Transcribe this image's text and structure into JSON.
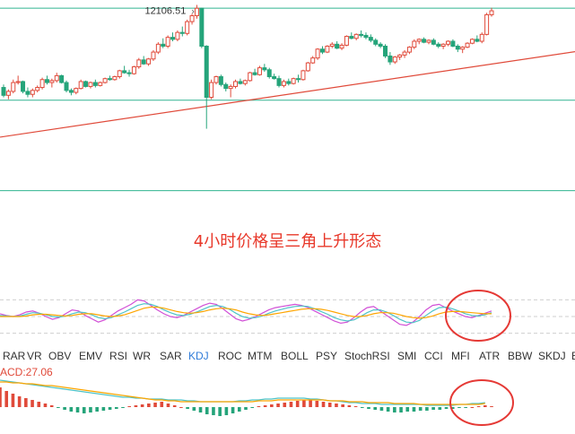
{
  "chart_data": [
    {
      "type": "candlestick",
      "high_label": "12106.51",
      "levels": {
        "top": 12106.51,
        "middle": 11170,
        "bottom": 10250
      },
      "trendline": [
        {
          "bar": 0,
          "value": 10800
        },
        {
          "bar": 130,
          "value": 11750
        }
      ],
      "ohlc": [
        [
          11300,
          11330,
          11200,
          11220
        ],
        [
          11220,
          11280,
          11180,
          11260
        ],
        [
          11260,
          11380,
          11240,
          11350
        ],
        [
          11350,
          11420,
          11330,
          11360
        ],
        [
          11360,
          11370,
          11240,
          11260
        ],
        [
          11260,
          11300,
          11200,
          11230
        ],
        [
          11230,
          11290,
          11200,
          11270
        ],
        [
          11270,
          11320,
          11250,
          11300
        ],
        [
          11300,
          11400,
          11280,
          11380
        ],
        [
          11380,
          11420,
          11330,
          11350
        ],
        [
          11350,
          11390,
          11300,
          11370
        ],
        [
          11370,
          11450,
          11350,
          11420
        ],
        [
          11420,
          11430,
          11340,
          11350
        ],
        [
          11350,
          11370,
          11250,
          11270
        ],
        [
          11270,
          11290,
          11220,
          11250
        ],
        [
          11250,
          11300,
          11230,
          11290
        ],
        [
          11290,
          11380,
          11280,
          11360
        ],
        [
          11360,
          11370,
          11300,
          11310
        ],
        [
          11310,
          11360,
          11290,
          11350
        ],
        [
          11350,
          11380,
          11300,
          11320
        ],
        [
          11320,
          11360,
          11310,
          11350
        ],
        [
          11350,
          11400,
          11340,
          11390
        ],
        [
          11390,
          11420,
          11370,
          11380
        ],
        [
          11380,
          11420,
          11370,
          11410
        ],
        [
          11410,
          11480,
          11390,
          11470
        ],
        [
          11470,
          11520,
          11440,
          11450
        ],
        [
          11450,
          11480,
          11410,
          11440
        ],
        [
          11440,
          11520,
          11430,
          11510
        ],
        [
          11510,
          11600,
          11490,
          11580
        ],
        [
          11580,
          11620,
          11530,
          11540
        ],
        [
          11540,
          11600,
          11520,
          11590
        ],
        [
          11590,
          11680,
          11570,
          11660
        ],
        [
          11660,
          11760,
          11640,
          11740
        ],
        [
          11740,
          11800,
          11700,
          11720
        ],
        [
          11720,
          11830,
          11700,
          11810
        ],
        [
          11810,
          11860,
          11770,
          11790
        ],
        [
          11790,
          11880,
          11770,
          11860
        ],
        [
          11860,
          11920,
          11820,
          11850
        ],
        [
          11850,
          11990,
          11830,
          11970
        ],
        [
          11970,
          12050,
          11940,
          12030
        ],
        [
          12030,
          12140,
          12000,
          12106
        ],
        [
          12106,
          12110,
          11700,
          11720
        ],
        [
          11720,
          11730,
          10880,
          11200
        ],
        [
          11200,
          11380,
          11180,
          11350
        ],
        [
          11350,
          11420,
          11330,
          11410
        ],
        [
          11410,
          11430,
          11310,
          11330
        ],
        [
          11330,
          11350,
          11260,
          11290
        ],
        [
          11290,
          11330,
          11200,
          11310
        ],
        [
          11310,
          11380,
          11290,
          11360
        ],
        [
          11360,
          11390,
          11330,
          11340
        ],
        [
          11340,
          11380,
          11320,
          11370
        ],
        [
          11370,
          11460,
          11360,
          11450
        ],
        [
          11450,
          11490,
          11420,
          11430
        ],
        [
          11430,
          11520,
          11420,
          11500
        ],
        [
          11500,
          11540,
          11460,
          11480
        ],
        [
          11480,
          11500,
          11390,
          11410
        ],
        [
          11410,
          11440,
          11380,
          11390
        ],
        [
          11390,
          11420,
          11300,
          11320
        ],
        [
          11320,
          11380,
          11300,
          11360
        ],
        [
          11360,
          11390,
          11320,
          11340
        ],
        [
          11340,
          11400,
          11330,
          11390
        ],
        [
          11390,
          11430,
          11350,
          11380
        ],
        [
          11380,
          11480,
          11370,
          11470
        ],
        [
          11470,
          11560,
          11460,
          11550
        ],
        [
          11550,
          11620,
          11540,
          11600
        ],
        [
          11600,
          11700,
          11580,
          11690
        ],
        [
          11690,
          11720,
          11640,
          11660
        ],
        [
          11660,
          11730,
          11650,
          11720
        ],
        [
          11720,
          11760,
          11700,
          11740
        ],
        [
          11740,
          11770,
          11690,
          11700
        ],
        [
          11700,
          11750,
          11680,
          11730
        ],
        [
          11730,
          11830,
          11720,
          11820
        ],
        [
          11820,
          11860,
          11790,
          11800
        ],
        [
          11800,
          11850,
          11780,
          11840
        ],
        [
          11840,
          11880,
          11810,
          11830
        ],
        [
          11830,
          11860,
          11790,
          11810
        ],
        [
          11810,
          11840,
          11760,
          11780
        ],
        [
          11780,
          11800,
          11720,
          11740
        ],
        [
          11740,
          11760,
          11700,
          11720
        ],
        [
          11720,
          11740,
          11600,
          11620
        ],
        [
          11620,
          11660,
          11530,
          11560
        ],
        [
          11560,
          11620,
          11540,
          11610
        ],
        [
          11610,
          11640,
          11580,
          11630
        ],
        [
          11630,
          11680,
          11600,
          11660
        ],
        [
          11660,
          11720,
          11640,
          11710
        ],
        [
          11710,
          11790,
          11690,
          11770
        ],
        [
          11770,
          11800,
          11740,
          11790
        ],
        [
          11790,
          11810,
          11750,
          11760
        ],
        [
          11760,
          11790,
          11740,
          11780
        ],
        [
          11780,
          11800,
          11730,
          11740
        ],
        [
          11740,
          11760,
          11700,
          11720
        ],
        [
          11720,
          11750,
          11690,
          11740
        ],
        [
          11740,
          11780,
          11720,
          11770
        ],
        [
          11770,
          11790,
          11710,
          11720
        ],
        [
          11720,
          11740,
          11660,
          11690
        ],
        [
          11690,
          11720,
          11650,
          11710
        ],
        [
          11710,
          11760,
          11700,
          11750
        ],
        [
          11750,
          11800,
          11740,
          11790
        ],
        [
          11790,
          11830,
          11760,
          11770
        ],
        [
          11770,
          11860,
          11750,
          11840
        ],
        [
          11840,
          12060,
          11830,
          12040
        ],
        [
          12040,
          12110,
          12020,
          12080
        ]
      ]
    },
    {
      "type": "line",
      "series": [
        {
          "values": [
            55,
            52,
            50,
            53,
            58,
            60,
            56,
            50,
            45,
            48,
            55,
            62,
            60,
            52,
            46,
            40,
            44,
            52,
            60,
            66,
            72,
            80,
            78,
            70,
            62,
            55,
            50,
            48,
            52,
            58,
            64,
            70,
            74,
            72,
            64,
            55,
            46,
            42,
            45,
            50,
            56,
            62,
            66,
            68,
            70,
            72,
            70,
            66,
            60,
            54,
            48,
            42,
            38,
            40,
            48,
            58,
            66,
            68,
            60,
            52,
            44,
            36,
            34,
            40,
            50,
            62,
            70,
            72,
            66,
            60,
            55,
            50,
            48,
            52,
            56,
            60
          ]
        },
        {
          "values": [
            52,
            51,
            50,
            51,
            54,
            57,
            56,
            53,
            50,
            49,
            51,
            55,
            58,
            57,
            53,
            48,
            46,
            48,
            53,
            58,
            64,
            70,
            73,
            72,
            68,
            62,
            57,
            53,
            52,
            54,
            58,
            63,
            68,
            70,
            68,
            63,
            56,
            50,
            47,
            48,
            51,
            56,
            60,
            63,
            66,
            68,
            69,
            68,
            64,
            59,
            54,
            48,
            44,
            42,
            44,
            50,
            57,
            62,
            62,
            58,
            52,
            45,
            40,
            39,
            43,
            52,
            60,
            66,
            67,
            64,
            60,
            55,
            52,
            51,
            53,
            57
          ]
        },
        {
          "values": [
            50,
            50,
            50,
            50,
            51,
            53,
            54,
            54,
            53,
            52,
            51,
            52,
            54,
            55,
            55,
            53,
            51,
            50,
            51,
            53,
            57,
            61,
            65,
            67,
            67,
            65,
            62,
            59,
            57,
            56,
            57,
            59,
            62,
            64,
            65,
            64,
            62,
            58,
            55,
            53,
            52,
            53,
            55,
            57,
            59,
            61,
            63,
            64,
            64,
            63,
            61,
            58,
            55,
            52,
            50,
            50,
            52,
            55,
            57,
            57,
            56,
            53,
            50,
            48,
            47,
            48,
            51,
            55,
            58,
            59,
            59,
            58,
            57,
            56,
            55,
            55
          ]
        }
      ],
      "reference_lines": [
        20,
        50,
        80
      ]
    },
    {
      "type": "bar",
      "series": [
        {
          "values": [
            22,
            18,
            15,
            12,
            10,
            8,
            6,
            4,
            2,
            -1,
            -3,
            -5,
            -6,
            -7,
            -6,
            -5,
            -4,
            -3,
            -2,
            -1,
            1,
            2,
            3,
            4,
            5,
            6,
            4,
            2,
            0,
            -2,
            -4,
            -6,
            -8,
            -9,
            -10,
            -9,
            -7,
            -5,
            -3,
            -1,
            1,
            2,
            3,
            4,
            5,
            6,
            7,
            8,
            8,
            7,
            6,
            5,
            4,
            3,
            2,
            1,
            -1,
            -2,
            -3,
            -4,
            -5,
            -6,
            -6,
            -5,
            -5,
            -4,
            -4,
            -3,
            -3,
            -2,
            -2,
            -1,
            -1,
            0,
            1,
            2,
            1
          ]
        },
        {
          "values": [
            30,
            29,
            28,
            27,
            26,
            25,
            24,
            23,
            22,
            21,
            20,
            19,
            18,
            17,
            16,
            15,
            14,
            13,
            12,
            11,
            11,
            10,
            10,
            9,
            9,
            9,
            8,
            8,
            8,
            7,
            7,
            6,
            6,
            6,
            6,
            6,
            6,
            7,
            7,
            8,
            8,
            9,
            9,
            10,
            10,
            10,
            10,
            10,
            9,
            9,
            8,
            7,
            7,
            6,
            5,
            5,
            4,
            4,
            4,
            3,
            3,
            3,
            3,
            3,
            3,
            3,
            2,
            2,
            2,
            2,
            2,
            3,
            3,
            4,
            4,
            5
          ]
        },
        {
          "values": [
            28,
            28,
            27,
            27,
            26,
            26,
            25,
            24,
            24,
            23,
            22,
            21,
            20,
            19,
            18,
            17,
            16,
            15,
            14,
            13,
            12,
            11,
            10,
            9,
            8,
            8,
            7,
            7,
            6,
            6,
            6,
            6,
            6,
            6,
            6,
            6,
            6,
            6,
            6,
            6,
            7,
            7,
            7,
            8,
            8,
            8,
            8,
            8,
            8,
            8,
            8,
            7,
            7,
            7,
            6,
            6,
            6,
            5,
            5,
            5,
            5,
            4,
            4,
            4,
            4,
            3,
            3,
            3,
            3,
            3,
            3,
            3,
            3,
            3,
            3,
            4
          ]
        }
      ]
    }
  ],
  "caption": "4小时价格呈三角上升形态",
  "tabs": [
    "RAR",
    "VR",
    "OBV",
    "EMV",
    "RSI",
    "WR",
    "SAR",
    "KDJ",
    "ROC",
    "MTM",
    "BOLL",
    "PSY",
    "StochRSI",
    "SMI",
    "CCI",
    "MFI",
    "ATR",
    "BBW",
    "SKDJ",
    "B"
  ],
  "active_tab": "KDJ",
  "macd_label": "ACD:27.06",
  "colors": {
    "up": "#e04a3a",
    "down": "#25a47a",
    "trendline": "#e04a3a",
    "level": "#31b491",
    "kdj_k": "#ffa500",
    "kdj_d": "#4fc3c7",
    "kdj_j": "#d14fd6",
    "highlight_circle": "#e53935"
  }
}
